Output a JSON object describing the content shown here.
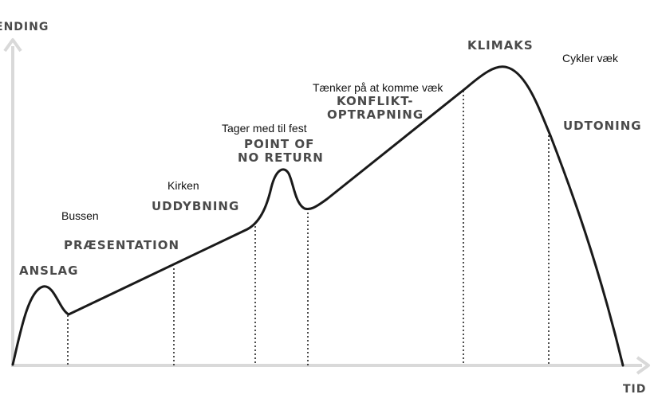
{
  "axes": {
    "y_label": "ENDING",
    "x_label": "TID"
  },
  "stages": {
    "anslag": "ANSLAG",
    "praesentation": "PRÆSENTATION",
    "uddybning": "UDDYBNING",
    "point_of_no_return_line1": "POINT OF",
    "point_of_no_return_line2": "NO RETURN",
    "konflikt_line1": "KONFLIKT-",
    "konflikt_line2": "OPTRAPNING",
    "klimaks": "KLIMAKS",
    "udtoning": "UDTONING"
  },
  "notes": {
    "bussen": "Bussen",
    "kirken": "Kirken",
    "tager_med_til_fest": "Tager med til fest",
    "taenker_paa_at_komme_vaek": "Tænker på at komme væk",
    "cykler_vaek": "Cykler væk"
  },
  "colors": {
    "axis": "#d9d9d9",
    "curve": "#1a1a1a",
    "stage_text": "#4a4a4a",
    "note_text": "#111111"
  }
}
